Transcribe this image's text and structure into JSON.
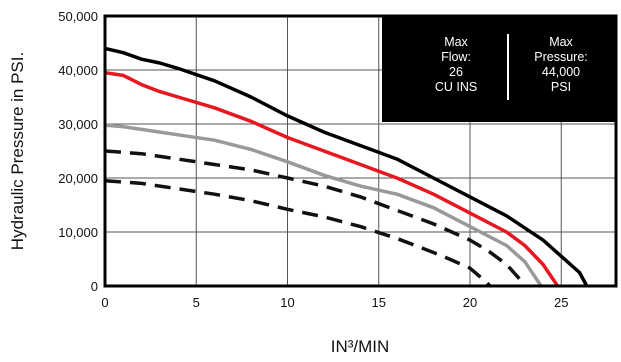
{
  "chart_data": {
    "type": "line",
    "xlabel": "IN³/MIN",
    "ylabel": "Hydraulic Pressure in PSI.",
    "xlim": [
      0,
      28
    ],
    "ylim": [
      0,
      50000
    ],
    "x_ticks": [
      0,
      5,
      10,
      15,
      20,
      25
    ],
    "y_ticks": [
      0,
      10000,
      20000,
      30000,
      40000,
      50000
    ],
    "x_tick_labels": [
      "0",
      "5",
      "10",
      "15",
      "20",
      "25"
    ],
    "y_tick_labels": [
      "0",
      "10,000",
      "20,000",
      "30,000",
      "40,000",
      "50,000"
    ],
    "grid": true,
    "info_box": {
      "flow_lines": [
        "Max",
        "Flow:",
        "26",
        "CU INS"
      ],
      "pressure_lines": [
        "Max",
        "Pressure:",
        "44,000",
        "PSI"
      ]
    },
    "series": [
      {
        "color": "#000000",
        "style": "solid",
        "points": [
          [
            0,
            44000
          ],
          [
            1,
            43200
          ],
          [
            2,
            42000
          ],
          [
            3,
            41300
          ],
          [
            4,
            40300
          ],
          [
            6,
            38000
          ],
          [
            8,
            35000
          ],
          [
            10,
            31500
          ],
          [
            12,
            28500
          ],
          [
            14,
            26000
          ],
          [
            16,
            23500
          ],
          [
            18,
            20000
          ],
          [
            20,
            16500
          ],
          [
            22,
            13000
          ],
          [
            24,
            8500
          ],
          [
            25,
            5500
          ],
          [
            26,
            2500
          ],
          [
            26.4,
            0
          ]
        ]
      },
      {
        "color": "#e8171f",
        "style": "solid",
        "points": [
          [
            0,
            39500
          ],
          [
            1,
            39000
          ],
          [
            2,
            37300
          ],
          [
            3,
            36000
          ],
          [
            4,
            35000
          ],
          [
            6,
            33000
          ],
          [
            8,
            30500
          ],
          [
            10,
            27500
          ],
          [
            12,
            25000
          ],
          [
            14,
            22500
          ],
          [
            16,
            20000
          ],
          [
            18,
            17000
          ],
          [
            20,
            13500
          ],
          [
            22,
            10000
          ],
          [
            23,
            7500
          ],
          [
            24,
            4000
          ],
          [
            24.6,
            1000
          ],
          [
            24.8,
            0
          ]
        ]
      },
      {
        "color": "#999999",
        "style": "solid",
        "points": [
          [
            0,
            29800
          ],
          [
            1,
            29500
          ],
          [
            2,
            29000
          ],
          [
            4,
            28000
          ],
          [
            6,
            27000
          ],
          [
            8,
            25300
          ],
          [
            10,
            23000
          ],
          [
            12,
            20500
          ],
          [
            14,
            18500
          ],
          [
            16,
            17000
          ],
          [
            18,
            14500
          ],
          [
            20,
            11000
          ],
          [
            22,
            7500
          ],
          [
            23,
            4500
          ],
          [
            23.7,
            1000
          ],
          [
            23.9,
            0
          ]
        ]
      },
      {
        "color": "#111111",
        "style": "dashed",
        "points": [
          [
            0,
            25000
          ],
          [
            2,
            24500
          ],
          [
            4,
            23500
          ],
          [
            6,
            22500
          ],
          [
            8,
            21500
          ],
          [
            10,
            20000
          ],
          [
            12,
            18500
          ],
          [
            14,
            16500
          ],
          [
            16,
            14000
          ],
          [
            18,
            11500
          ],
          [
            20,
            8500
          ],
          [
            21,
            6500
          ],
          [
            22,
            4000
          ],
          [
            22.8,
            1000
          ],
          [
            23,
            0
          ]
        ]
      },
      {
        "color": "#111111",
        "style": "dashed",
        "points": [
          [
            0,
            19500
          ],
          [
            2,
            19000
          ],
          [
            4,
            18000
          ],
          [
            6,
            17000
          ],
          [
            8,
            15800
          ],
          [
            10,
            14200
          ],
          [
            12,
            12800
          ],
          [
            14,
            11000
          ],
          [
            16,
            8800
          ],
          [
            18,
            6200
          ],
          [
            19,
            4800
          ],
          [
            20,
            3300
          ],
          [
            20.8,
            1000
          ],
          [
            21.1,
            0
          ]
        ]
      }
    ]
  }
}
